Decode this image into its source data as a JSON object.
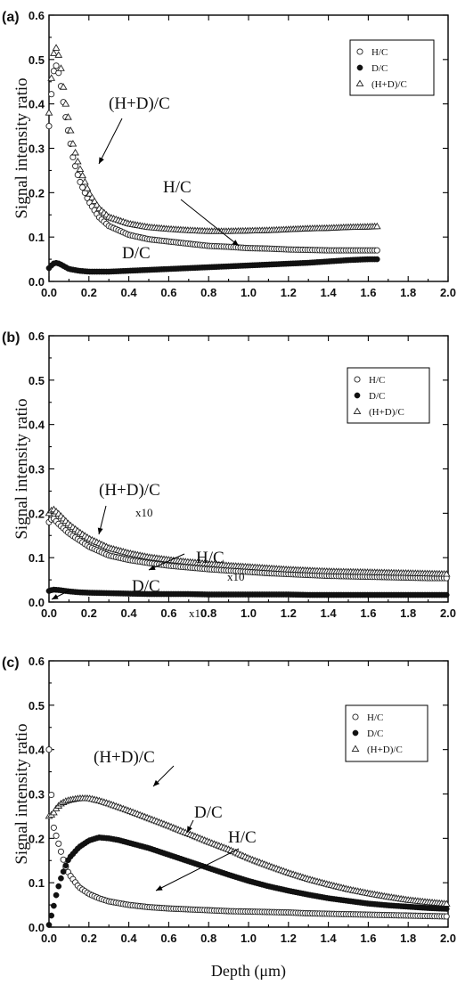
{
  "figure": {
    "xlabel": "Depth (μm)"
  },
  "chart_data": [
    {
      "type": "scatter",
      "panel_label": "(a)",
      "ylabel": "Signal intensity ratio",
      "xlim": [
        0,
        2.0
      ],
      "ylim": [
        0,
        0.6
      ],
      "xticks": [
        "0.0",
        "0.2",
        "0.4",
        "0.6",
        "0.8",
        "1.0",
        "1.2",
        "1.4",
        "1.6",
        "1.8",
        "2.0"
      ],
      "yticks": [
        "0.0",
        "0.1",
        "0.2",
        "0.3",
        "0.4",
        "0.5",
        "0.6"
      ],
      "legend": [
        "H/C",
        "D/C",
        "(H+D)/C"
      ],
      "legend_position": "top-right",
      "annotations": [
        {
          "text": "(H+D)/C"
        },
        {
          "text": "H/C"
        },
        {
          "text": "D/C"
        }
      ],
      "series": [
        {
          "name": "H/C",
          "marker": "open-circle",
          "x": [
            0.0,
            0.02,
            0.04,
            0.06,
            0.08,
            0.1,
            0.12,
            0.15,
            0.2,
            0.25,
            0.3,
            0.4,
            0.5,
            0.6,
            0.7,
            0.8,
            0.9,
            1.0,
            1.1,
            1.2,
            1.3,
            1.4,
            1.5,
            1.6,
            1.65
          ],
          "y": [
            0.35,
            0.47,
            0.49,
            0.44,
            0.38,
            0.33,
            0.28,
            0.23,
            0.18,
            0.145,
            0.125,
            0.105,
            0.095,
            0.09,
            0.085,
            0.08,
            0.078,
            0.075,
            0.074,
            0.072,
            0.071,
            0.07,
            0.07,
            0.07,
            0.07
          ]
        },
        {
          "name": "D/C",
          "marker": "filled-circle",
          "x": [
            0.0,
            0.02,
            0.04,
            0.06,
            0.08,
            0.1,
            0.15,
            0.2,
            0.3,
            0.4,
            0.5,
            0.6,
            0.7,
            0.8,
            0.9,
            1.0,
            1.1,
            1.2,
            1.3,
            1.4,
            1.5,
            1.6,
            1.65
          ],
          "y": [
            0.03,
            0.04,
            0.042,
            0.038,
            0.033,
            0.028,
            0.024,
            0.022,
            0.022,
            0.024,
            0.026,
            0.028,
            0.03,
            0.032,
            0.034,
            0.036,
            0.038,
            0.04,
            0.042,
            0.045,
            0.048,
            0.05,
            0.05
          ]
        },
        {
          "name": "(H+D)/C",
          "marker": "open-triangle",
          "x": [
            0.0,
            0.02,
            0.04,
            0.06,
            0.08,
            0.1,
            0.12,
            0.15,
            0.2,
            0.25,
            0.3,
            0.4,
            0.5,
            0.6,
            0.7,
            0.8,
            0.9,
            1.0,
            1.1,
            1.2,
            1.3,
            1.4,
            1.5,
            1.6,
            1.65
          ],
          "y": [
            0.38,
            0.51,
            0.53,
            0.48,
            0.41,
            0.36,
            0.31,
            0.26,
            0.2,
            0.165,
            0.145,
            0.13,
            0.122,
            0.118,
            0.115,
            0.113,
            0.113,
            0.114,
            0.115,
            0.117,
            0.119,
            0.12,
            0.122,
            0.123,
            0.124
          ]
        }
      ]
    },
    {
      "type": "scatter",
      "panel_label": "(b)",
      "ylabel": "Signal intensity ratio",
      "xlim": [
        0,
        2.0
      ],
      "ylim": [
        0,
        0.6
      ],
      "xticks": [
        "0.0",
        "0.2",
        "0.4",
        "0.6",
        "0.8",
        "1.0",
        "1.2",
        "1.4",
        "1.6",
        "1.8",
        "2.0"
      ],
      "yticks": [
        "0.0",
        "0.1",
        "0.2",
        "0.3",
        "0.4",
        "0.5",
        "0.6"
      ],
      "legend": [
        "H/C",
        "D/C",
        "(H+D)/C"
      ],
      "legend_position": "top-right",
      "annotations": [
        {
          "text": "(H+D)/C",
          "sub": "x10"
        },
        {
          "text": "H/C",
          "sub": "x10"
        },
        {
          "text": "D/C",
          "sub": "x10"
        }
      ],
      "series": [
        {
          "name": "H/C",
          "marker": "open-circle",
          "x": [
            0.0,
            0.02,
            0.05,
            0.1,
            0.15,
            0.2,
            0.3,
            0.4,
            0.5,
            0.6,
            0.7,
            0.8,
            0.9,
            1.0,
            1.1,
            1.2,
            1.3,
            1.4,
            1.5,
            1.6,
            1.7,
            1.8,
            1.9,
            2.0
          ],
          "y": [
            0.18,
            0.19,
            0.175,
            0.155,
            0.14,
            0.125,
            0.105,
            0.095,
            0.088,
            0.082,
            0.078,
            0.074,
            0.071,
            0.068,
            0.065,
            0.063,
            0.061,
            0.059,
            0.058,
            0.057,
            0.056,
            0.055,
            0.054,
            0.054
          ]
        },
        {
          "name": "D/C",
          "marker": "filled-circle",
          "x": [
            0.0,
            0.02,
            0.05,
            0.1,
            0.15,
            0.2,
            0.3,
            0.4,
            0.5,
            0.6,
            0.7,
            0.8,
            0.9,
            1.0,
            1.1,
            1.2,
            1.3,
            1.4,
            1.5,
            1.6,
            1.7,
            1.8,
            1.9,
            2.0
          ],
          "y": [
            0.025,
            0.028,
            0.027,
            0.024,
            0.022,
            0.021,
            0.02,
            0.019,
            0.018,
            0.018,
            0.018,
            0.017,
            0.017,
            0.017,
            0.017,
            0.017,
            0.016,
            0.016,
            0.016,
            0.016,
            0.016,
            0.016,
            0.016,
            0.016
          ]
        },
        {
          "name": "(H+D)/C",
          "marker": "open-triangle",
          "x": [
            0.0,
            0.02,
            0.05,
            0.1,
            0.15,
            0.2,
            0.3,
            0.4,
            0.5,
            0.6,
            0.7,
            0.8,
            0.9,
            1.0,
            1.1,
            1.2,
            1.3,
            1.4,
            1.5,
            1.6,
            1.7,
            1.8,
            1.9,
            2.0
          ],
          "y": [
            0.2,
            0.21,
            0.198,
            0.175,
            0.158,
            0.143,
            0.122,
            0.11,
            0.101,
            0.095,
            0.09,
            0.086,
            0.082,
            0.079,
            0.076,
            0.073,
            0.071,
            0.069,
            0.068,
            0.067,
            0.066,
            0.065,
            0.064,
            0.063
          ]
        }
      ]
    },
    {
      "type": "scatter",
      "panel_label": "(c)",
      "ylabel": "Signal intensity ratio",
      "xlabel": "Depth (μm)",
      "xlim": [
        0,
        2.0
      ],
      "ylim": [
        0,
        0.6
      ],
      "xticks": [
        "0.0",
        "0.2",
        "0.4",
        "0.6",
        "0.8",
        "1.0",
        "1.2",
        "1.4",
        "1.6",
        "1.8",
        "2.0"
      ],
      "yticks": [
        "0.0",
        "0.1",
        "0.2",
        "0.3",
        "0.4",
        "0.5",
        "0.6"
      ],
      "legend": [
        "H/C",
        "D/C",
        "(H+D)/C"
      ],
      "legend_position": "top-right",
      "annotations": [
        {
          "text": "(H+D)/C"
        },
        {
          "text": "D/C"
        },
        {
          "text": "H/C"
        }
      ],
      "series": [
        {
          "name": "H/C",
          "marker": "open-circle",
          "x": [
            0.0,
            0.02,
            0.04,
            0.06,
            0.08,
            0.1,
            0.15,
            0.2,
            0.25,
            0.3,
            0.4,
            0.5,
            0.6,
            0.7,
            0.8,
            0.9,
            1.0,
            1.1,
            1.2,
            1.3,
            1.4,
            1.5,
            1.6,
            1.7,
            1.8,
            1.9,
            2.0
          ],
          "y": [
            0.4,
            0.23,
            0.2,
            0.17,
            0.14,
            0.12,
            0.09,
            0.075,
            0.065,
            0.058,
            0.05,
            0.045,
            0.042,
            0.04,
            0.038,
            0.036,
            0.035,
            0.034,
            0.033,
            0.031,
            0.03,
            0.029,
            0.028,
            0.027,
            0.026,
            0.025,
            0.024
          ]
        },
        {
          "name": "D/C",
          "marker": "filled-circle",
          "x": [
            0.0,
            0.02,
            0.04,
            0.06,
            0.08,
            0.1,
            0.15,
            0.2,
            0.25,
            0.3,
            0.35,
            0.4,
            0.5,
            0.6,
            0.7,
            0.8,
            0.9,
            1.0,
            1.1,
            1.2,
            1.3,
            1.4,
            1.5,
            1.6,
            1.7,
            1.8,
            1.9,
            2.0
          ],
          "y": [
            0.005,
            0.04,
            0.08,
            0.11,
            0.135,
            0.155,
            0.18,
            0.195,
            0.202,
            0.2,
            0.196,
            0.19,
            0.178,
            0.163,
            0.148,
            0.133,
            0.118,
            0.104,
            0.092,
            0.082,
            0.073,
            0.065,
            0.059,
            0.053,
            0.049,
            0.046,
            0.043,
            0.041
          ]
        },
        {
          "name": "(H+D)/C",
          "marker": "open-triangle",
          "x": [
            0.0,
            0.02,
            0.04,
            0.06,
            0.08,
            0.1,
            0.15,
            0.2,
            0.25,
            0.3,
            0.35,
            0.4,
            0.5,
            0.6,
            0.7,
            0.8,
            0.9,
            1.0,
            1.1,
            1.2,
            1.3,
            1.4,
            1.5,
            1.6,
            1.7,
            1.8,
            1.9,
            2.0
          ],
          "y": [
            0.25,
            0.255,
            0.27,
            0.278,
            0.283,
            0.286,
            0.29,
            0.29,
            0.285,
            0.278,
            0.27,
            0.262,
            0.245,
            0.228,
            0.21,
            0.192,
            0.175,
            0.155,
            0.138,
            0.122,
            0.108,
            0.096,
            0.085,
            0.076,
            0.068,
            0.061,
            0.056,
            0.052
          ]
        }
      ]
    }
  ]
}
